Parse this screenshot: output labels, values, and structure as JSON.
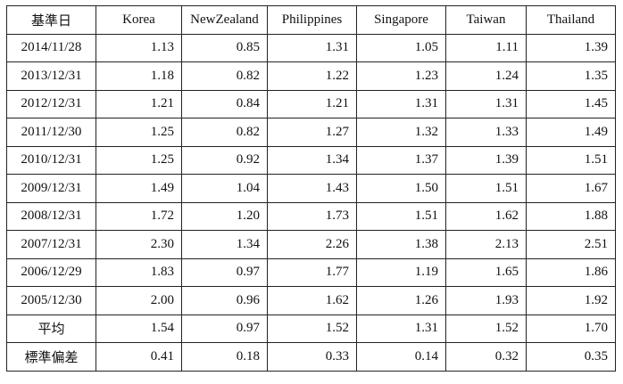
{
  "table": {
    "header": [
      "基準日",
      "Korea",
      "NewZealand",
      "Philippines",
      "Singapore",
      "Taiwan",
      "Thailand"
    ],
    "rows": [
      [
        "2014/11/28",
        "1.13",
        "0.85",
        "1.31",
        "1.05",
        "1.11",
        "1.39"
      ],
      [
        "2013/12/31",
        "1.18",
        "0.82",
        "1.22",
        "1.23",
        "1.24",
        "1.35"
      ],
      [
        "2012/12/31",
        "1.21",
        "0.84",
        "1.21",
        "1.31",
        "1.31",
        "1.45"
      ],
      [
        "2011/12/30",
        "1.25",
        "0.82",
        "1.27",
        "1.32",
        "1.33",
        "1.49"
      ],
      [
        "2010/12/31",
        "1.25",
        "0.92",
        "1.34",
        "1.37",
        "1.39",
        "1.51"
      ],
      [
        "2009/12/31",
        "1.49",
        "1.04",
        "1.43",
        "1.50",
        "1.51",
        "1.67"
      ],
      [
        "2008/12/31",
        "1.72",
        "1.20",
        "1.73",
        "1.51",
        "1.62",
        "1.88"
      ],
      [
        "2007/12/31",
        "2.30",
        "1.34",
        "2.26",
        "1.38",
        "2.13",
        "2.51"
      ],
      [
        "2006/12/29",
        "1.83",
        "0.97",
        "1.77",
        "1.19",
        "1.65",
        "1.86"
      ],
      [
        "2005/12/30",
        "2.00",
        "0.96",
        "1.62",
        "1.26",
        "1.93",
        "1.92"
      ],
      [
        "平均",
        "1.54",
        "0.97",
        "1.52",
        "1.31",
        "1.52",
        "1.70"
      ],
      [
        "標準偏差",
        "0.41",
        "0.18",
        "0.33",
        "0.14",
        "0.32",
        "0.35"
      ]
    ]
  }
}
